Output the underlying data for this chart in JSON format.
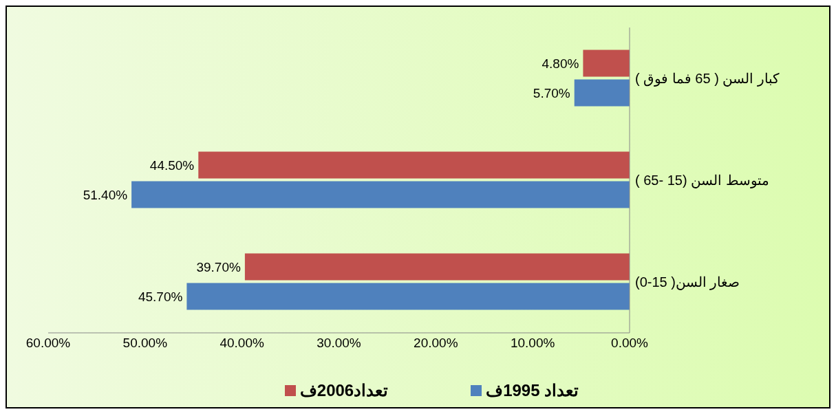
{
  "chart_data": {
    "type": "bar",
    "orientation": "horizontal",
    "categories": [
      "كبار السن ( 65 فما فوق )",
      "متوسط السن (15 -65 )",
      "صغار السن( 15-0)"
    ],
    "series": [
      {
        "name": "تعداد 1995ف",
        "color": "#4f81bd",
        "values": [
          5.7,
          51.4,
          45.7
        ],
        "value_labels": [
          "5.70%",
          "51.40%",
          "45.70%"
        ]
      },
      {
        "name": "تعداد2006ف",
        "color": "#c0504d",
        "values": [
          4.8,
          44.5,
          39.7
        ],
        "value_labels": [
          "4.80%",
          "44.50%",
          "39.70%"
        ]
      }
    ],
    "xlim": [
      60,
      0
    ],
    "xticks": [
      {
        "value": 60,
        "label": "60.00%"
      },
      {
        "value": 50,
        "label": "50.00%"
      },
      {
        "value": 40,
        "label": "40.00%"
      },
      {
        "value": 30,
        "label": "30.00%"
      },
      {
        "value": 20,
        "label": "20.00%"
      },
      {
        "value": 10,
        "label": "10.00%"
      },
      {
        "value": 0,
        "label": "0.00%"
      }
    ],
    "grid": false,
    "legend": "bottom"
  }
}
